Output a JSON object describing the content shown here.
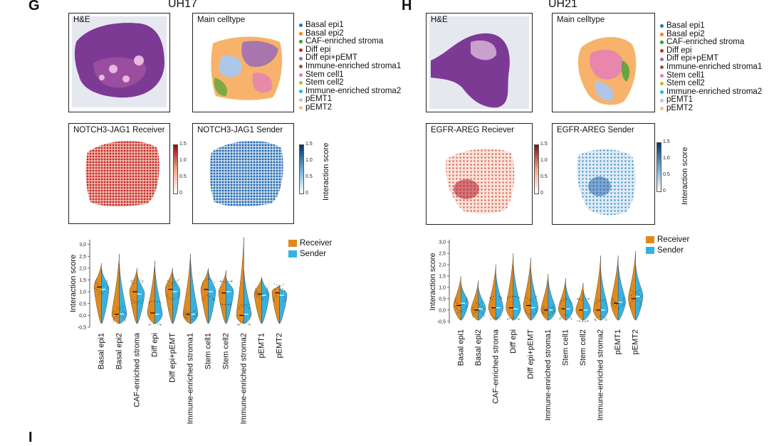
{
  "figure": {
    "panels": [
      {
        "letter": "G",
        "sample": "UH17",
        "he_label": "H&E",
        "celltype_label": "Main celltype",
        "receiver_label": "NOTCH3-JAG1 Receiver",
        "sender_label": "NOTCH3-JAG1 Sender"
      },
      {
        "letter": "H",
        "sample": "UH21",
        "he_label": "H&E",
        "celltype_label": "Main celltype",
        "receiver_label": "EGFR-AREG Reciever",
        "sender_label": "EGFR-AREG Sender"
      }
    ],
    "next_panel_letter": "I",
    "celltype_legend": [
      {
        "label": "Basal epi1",
        "color": "#1f77b4"
      },
      {
        "label": "Basal epi2",
        "color": "#ff7f0e"
      },
      {
        "label": "CAF-enriched stroma",
        "color": "#2ca02c"
      },
      {
        "label": "Diff epi",
        "color": "#d62728"
      },
      {
        "label": "Diff epi+pEMT",
        "color": "#9467bd"
      },
      {
        "label": "Immune-enriched stroma1",
        "color": "#8c564b"
      },
      {
        "label": "Stem cell1",
        "color": "#e377c2"
      },
      {
        "label": "Stem cell2",
        "color": "#bcbd22"
      },
      {
        "label": "Immune-enriched stroma2",
        "color": "#17becf"
      },
      {
        "label": "pEMT1",
        "color": "#aec7e8"
      },
      {
        "label": "pEMT2",
        "color": "#ffbb78"
      }
    ],
    "colorbar": {
      "ticks": [
        "1.5",
        "1.0",
        "0.5",
        "0"
      ],
      "title": "Interaction score",
      "receiver_color": "#b2182b",
      "sender_color": "#08519c"
    },
    "violin_legend": [
      {
        "label": "Receiver",
        "color": "#e08a1e"
      },
      {
        "label": "Sender",
        "color": "#35b2e2"
      }
    ]
  },
  "chart_data": [
    {
      "type": "violin",
      "title": "UH17 NOTCH3-JAG1",
      "ylabel": "Interaction score",
      "ylim": [
        -0.5,
        3.2
      ],
      "yticks": [
        "3,0",
        "2,5",
        "2,0",
        "1,5",
        "1,0",
        "0,5",
        "0,0",
        "-0,5"
      ],
      "categories": [
        "Basal epi1",
        "Basal epi2",
        "CAF-enriched stroma",
        "Diff epi",
        "Diff epi+pEMT",
        "Immune-enriched stroma1",
        "Stem cell1",
        "Stem cell2",
        "Immune-enriched stroma2",
        "pEMT1",
        "pEMT2"
      ],
      "series": [
        {
          "name": "Receiver",
          "median": [
            1.2,
            0.05,
            1.0,
            0.1,
            1.1,
            0.05,
            1.1,
            0.95,
            0.0,
            0.9,
            0.95
          ],
          "max": [
            2.2,
            2.6,
            2.0,
            2.3,
            2.0,
            2.6,
            2.0,
            1.9,
            3.3,
            1.6,
            1.3
          ]
        },
        {
          "name": "Sender",
          "median": [
            1.1,
            0.05,
            0.9,
            0.05,
            1.0,
            0.05,
            1.0,
            1.0,
            0.05,
            0.85,
            0.85
          ],
          "max": [
            2.0,
            2.2,
            1.8,
            2.0,
            1.8,
            2.4,
            1.9,
            1.6,
            1.9,
            1.6,
            1.2
          ]
        }
      ]
    },
    {
      "type": "violin",
      "title": "UH21 EGFR-AREG",
      "ylabel": "Interaction score",
      "ylim": [
        -0.6,
        3.1
      ],
      "yticks": [
        "3,0",
        "2,5",
        "2,0",
        "1,5",
        "1,0",
        "0,5",
        "0,0",
        "-0,5"
      ],
      "categories": [
        "Basal epi1",
        "Basal epi2",
        "CAF-enriched stroma",
        "Diff epi",
        "Diff epi+pEMT",
        "Immune-enriched stroma1",
        "Stem cell1",
        "Stem cell2",
        "Immune-enriched stroma2",
        "pEMT1",
        "pEMT2"
      ],
      "series": [
        {
          "name": "Receiver",
          "median": [
            0.2,
            0.0,
            0.1,
            0.1,
            0.2,
            0.0,
            0.05,
            0.0,
            0.0,
            0.3,
            0.5
          ],
          "max": [
            1.5,
            1.3,
            2.0,
            2.5,
            2.3,
            1.6,
            1.4,
            1.2,
            2.4,
            2.4,
            2.6
          ]
        },
        {
          "name": "Sender",
          "median": [
            0.3,
            0.05,
            0.1,
            0.05,
            0.1,
            0.0,
            0.05,
            0.0,
            0.0,
            0.35,
            0.6
          ],
          "max": [
            1.2,
            1.0,
            1.6,
            2.0,
            1.8,
            1.3,
            1.1,
            0.9,
            1.8,
            2.0,
            2.0
          ]
        }
      ]
    }
  ]
}
